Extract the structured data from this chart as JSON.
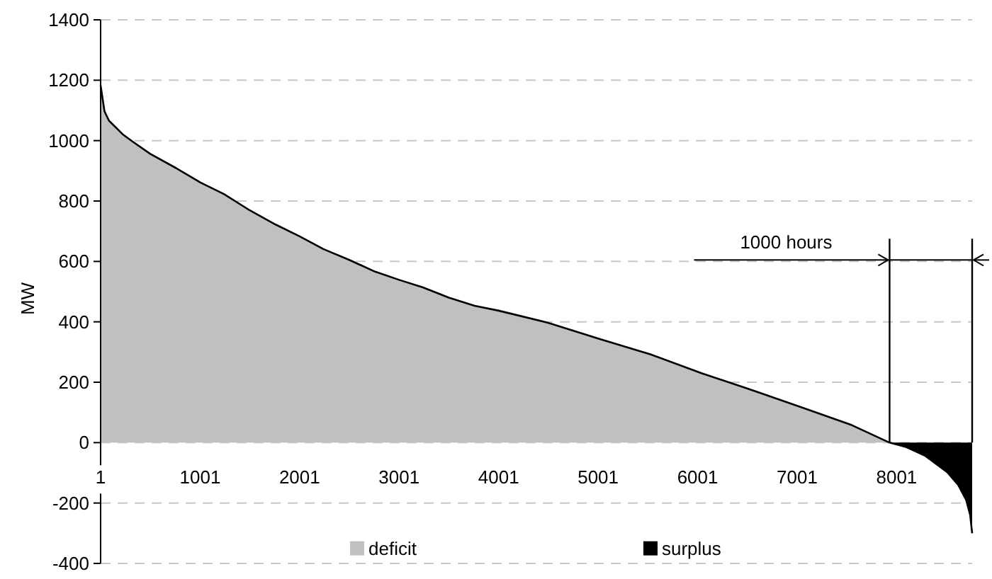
{
  "chart_data": {
    "type": "area",
    "ylabel": "MW",
    "xlim": [
      1,
      8760
    ],
    "xticks": [
      1,
      1001,
      2001,
      3001,
      4001,
      5001,
      6001,
      7001,
      8001
    ],
    "ylim": [
      -400,
      1400
    ],
    "yticks": [
      -400,
      -200,
      0,
      200,
      400,
      600,
      800,
      1000,
      1200,
      1400
    ],
    "grid": "y",
    "legend": "bottom",
    "series": [
      {
        "name": "deficit",
        "color": "#c0c0c0",
        "x": [
          1,
          40,
          85,
          230,
          330,
          500,
          760,
          1001,
          1240,
          1501,
          1760,
          2001,
          2240,
          2501,
          2760,
          3001,
          3240,
          3501,
          3760,
          4001,
          4497,
          5030,
          5530,
          6040,
          6540,
          7046,
          7550,
          7930
        ],
        "values": [
          1183,
          1097,
          1066,
          1019,
          995,
          956,
          909,
          862,
          823,
          769,
          722,
          683,
          641,
          605,
          566,
          539,
          514,
          480,
          453,
          437,
          397,
          342,
          292,
          230,
          175,
          117,
          58,
          0
        ]
      },
      {
        "name": "surplus",
        "color": "#000000",
        "x": [
          7930,
          8100,
          8290,
          8510,
          8620,
          8700,
          8740,
          8760
        ],
        "values": [
          0,
          -15,
          -44,
          -98,
          -140,
          -190,
          -240,
          -300
        ]
      }
    ],
    "ref_lines": [
      {
        "axis": "x",
        "value": 7930
      },
      {
        "axis": "x",
        "value": 8760
      }
    ],
    "annotations": [
      "1000 hours"
    ]
  }
}
